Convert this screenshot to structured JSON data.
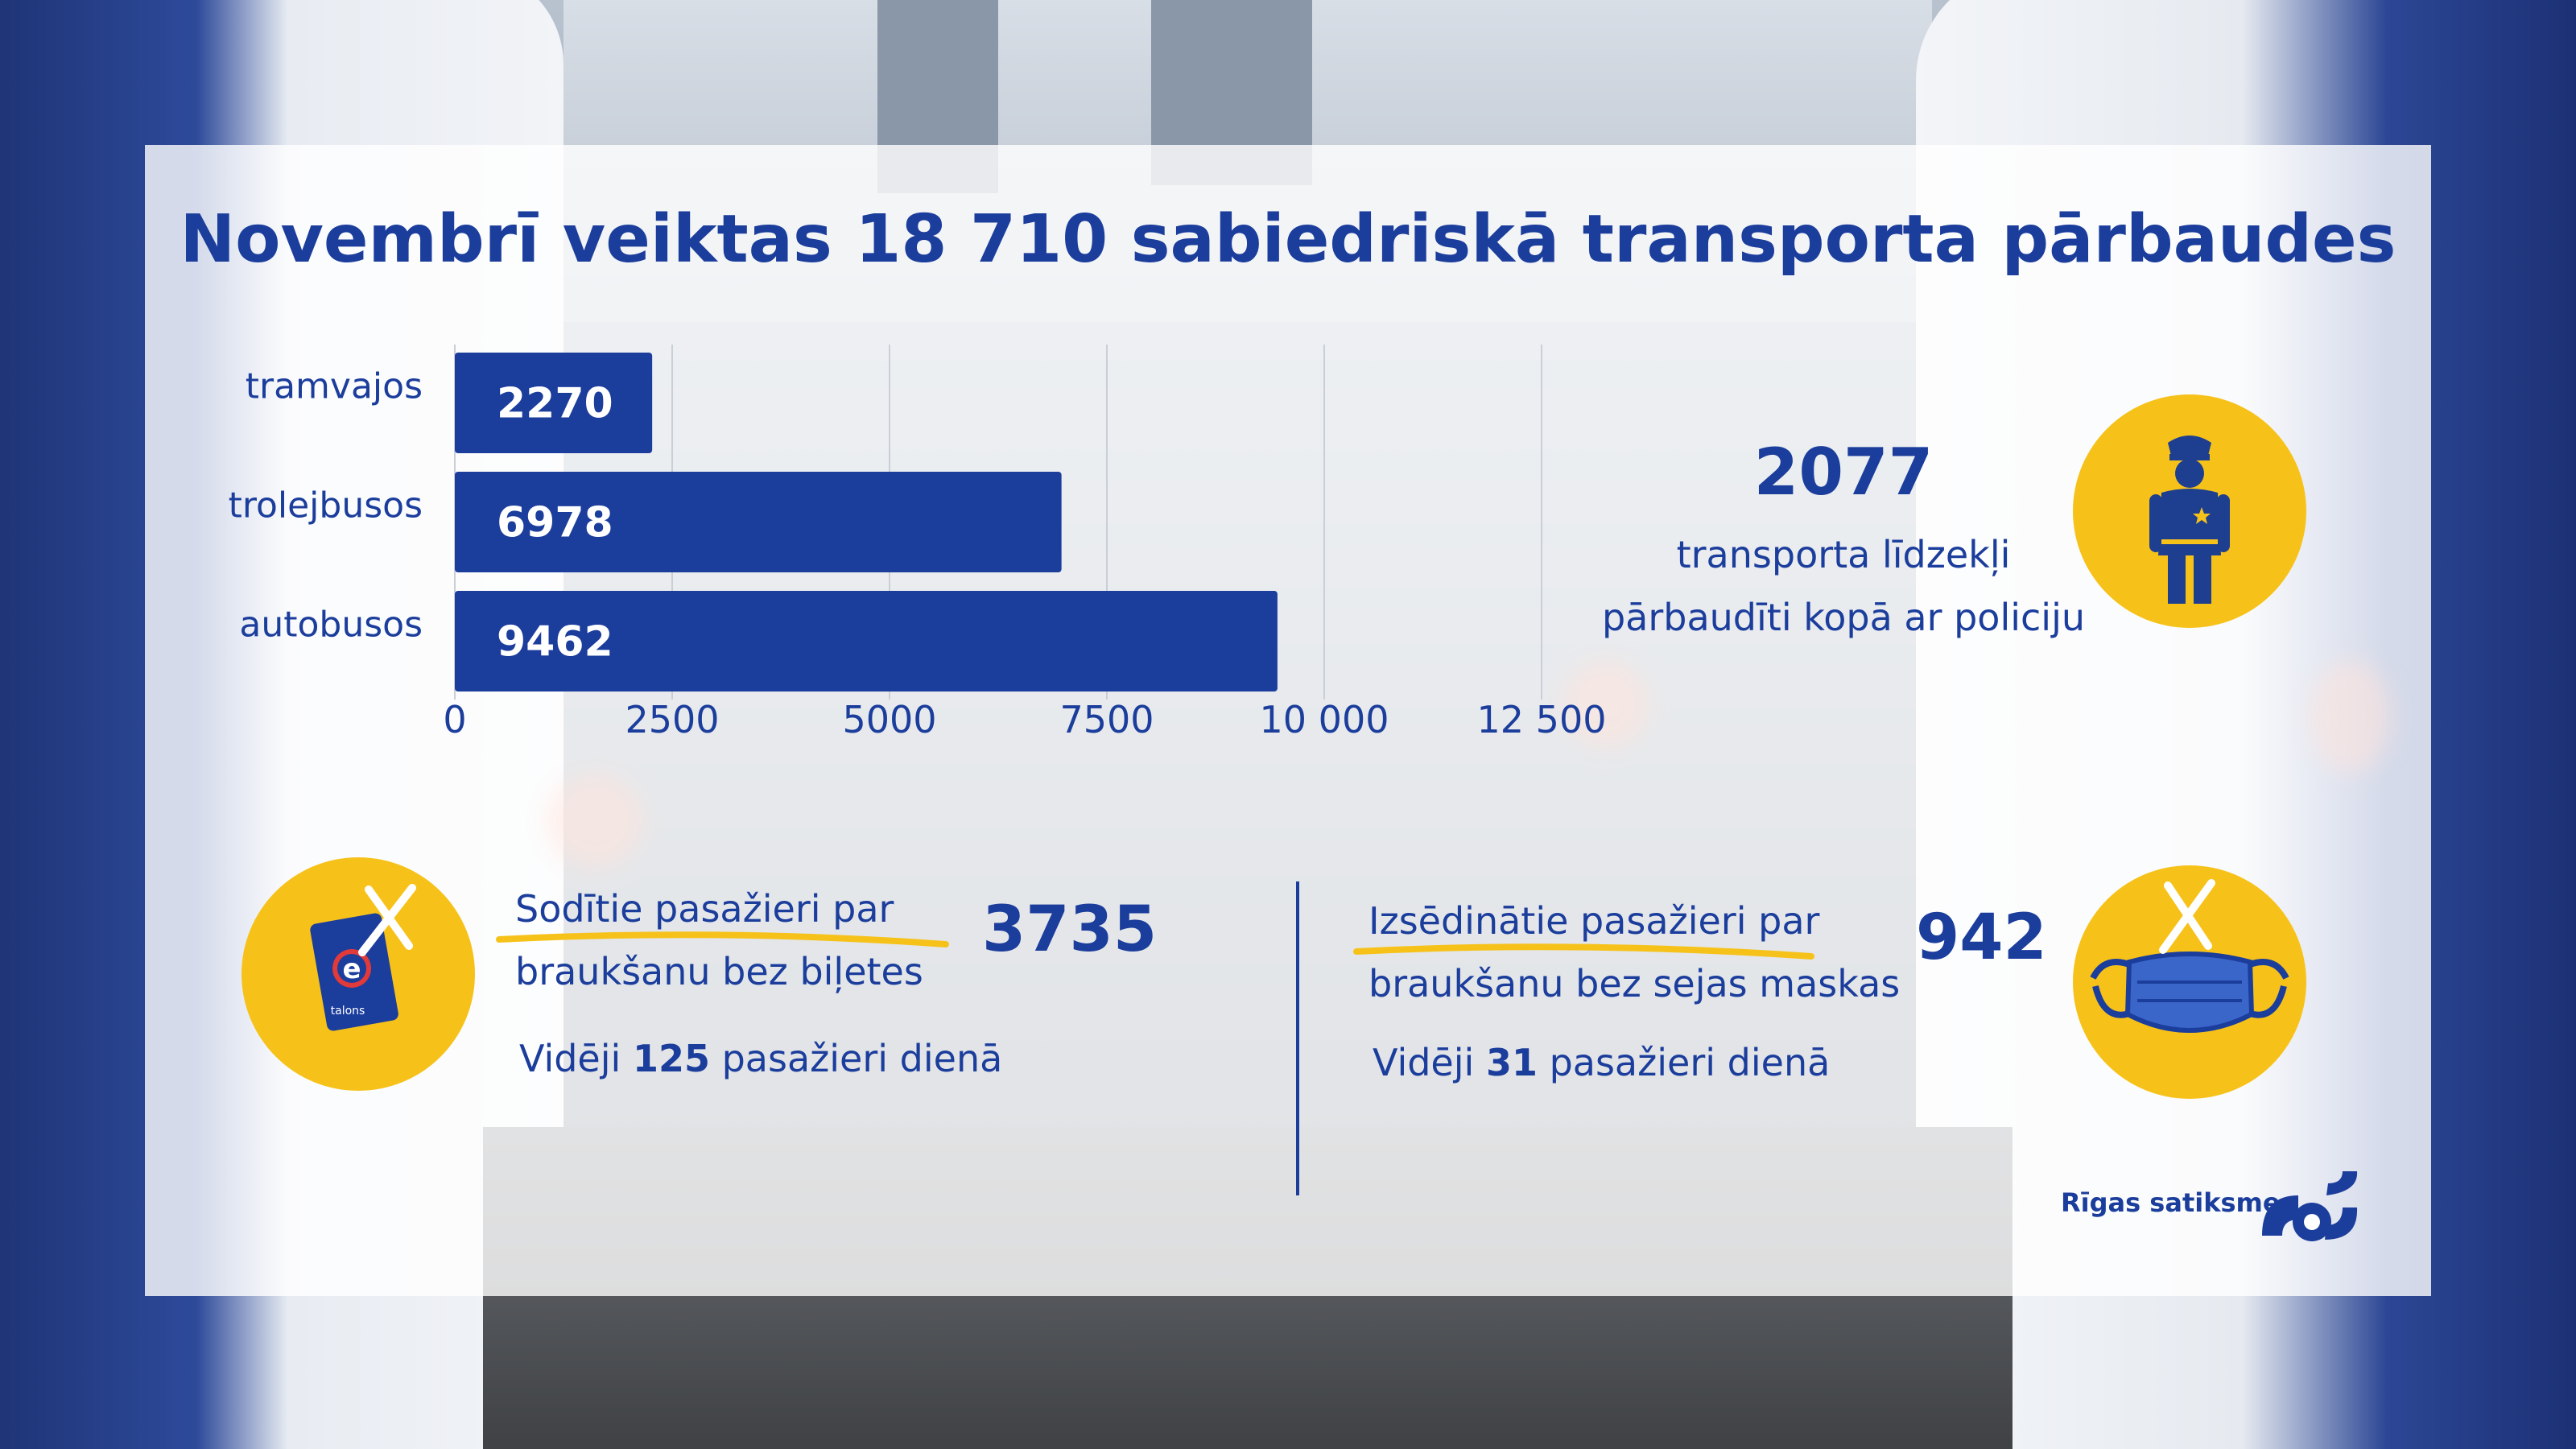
{
  "title": "Novembrī veiktas 18 710 sabiedriskā transporta pārbaudes",
  "chart_data": {
    "type": "bar",
    "orientation": "horizontal",
    "categories": [
      "tramvajos",
      "trolejbusos",
      "autobusos"
    ],
    "values": [
      2270,
      6978,
      9462
    ],
    "value_labels": [
      "2270",
      "6978",
      "9462"
    ],
    "xlim": [
      0,
      12500
    ],
    "ticks": [
      0,
      2500,
      5000,
      7500,
      10000,
      12500
    ],
    "tick_labels": [
      "0",
      "2500",
      "5000",
      "7500",
      "10 000",
      "12 500"
    ],
    "grid": "vertical",
    "bar_color": "#1b3d9c"
  },
  "police": {
    "value": "2077",
    "line1": "transporta līdzekļi",
    "line2": "pārbaudīti kopā ar policiju"
  },
  "fined": {
    "label_line1": "Sodītie pasažieri par",
    "label_line2": "braukšanu bez biļetes",
    "value": "3735",
    "daily_prefix": "Vidēji",
    "daily_value": "125",
    "daily_suffix": "pasažieri dienā",
    "card_label": "talons"
  },
  "removed": {
    "label_line1": "Izsēdinātie pasažieri par",
    "label_line2": "braukšanu bez sejas maskas",
    "value": "942",
    "daily_prefix": "Vidēji",
    "daily_value": "31",
    "daily_suffix": "pasažieri dienā"
  },
  "brand": {
    "name": "Rīgas satiksme"
  },
  "colors": {
    "primary": "#1b3d9c",
    "accent": "#f6c21a",
    "police_uniform": "#1e3f8f"
  },
  "icons": [
    "police-officer-icon",
    "e-talons-card-icon",
    "face-mask-icon",
    "cross-mark-icon",
    "rigas-satiksme-logo"
  ]
}
